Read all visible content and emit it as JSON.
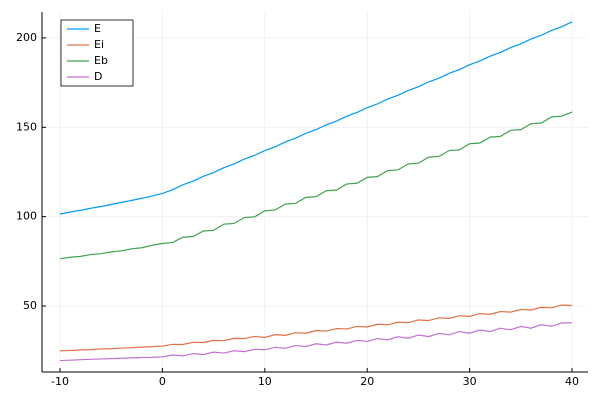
{
  "chart_data": {
    "type": "line",
    "x": [
      -10,
      -9,
      -8,
      -7,
      -6,
      -5,
      -4,
      -3,
      -2,
      -1,
      0,
      1,
      2,
      3,
      4,
      5,
      6,
      7,
      8,
      9,
      10,
      11,
      12,
      13,
      14,
      15,
      16,
      17,
      18,
      19,
      20,
      21,
      22,
      23,
      24,
      25,
      26,
      27,
      28,
      29,
      30,
      31,
      32,
      33,
      34,
      35,
      36,
      37,
      38,
      39,
      40
    ],
    "series": [
      {
        "name": "E",
        "color": "#009afa",
        "values": [
          101.5,
          102.6,
          103.6,
          104.7,
          105.7,
          106.8,
          108,
          109.1,
          110.3,
          111.6,
          113,
          115.1,
          117.8,
          119.9,
          122.6,
          124.7,
          127.4,
          129.5,
          132.2,
          134.3,
          137,
          139.1,
          141.8,
          143.9,
          146.6,
          148.7,
          151.4,
          153.5,
          156.2,
          158.3,
          161,
          163.1,
          165.8,
          167.9,
          170.6,
          172.7,
          175.4,
          177.5,
          180.2,
          182.3,
          185,
          187.1,
          189.8,
          191.9,
          194.6,
          196.7,
          199.4,
          201.5,
          204.2,
          206.3,
          209
        ]
      },
      {
        "name": "Ei",
        "color": "#e36f47",
        "values": [
          25,
          25.1,
          25.5,
          25.6,
          26,
          26.1,
          26.5,
          26.7,
          27,
          27.3,
          27.6,
          28.6,
          28.5,
          29.7,
          29.6,
          30.8,
          30.7,
          31.9,
          31.8,
          33,
          32.4,
          34,
          33.6,
          35.1,
          34.8,
          36.3,
          36,
          37.4,
          37.2,
          38.6,
          38.3,
          39.8,
          39.5,
          41,
          40.7,
          42.2,
          41.9,
          43.4,
          43.1,
          44.6,
          44.2,
          45.7,
          45.4,
          46.9,
          46.6,
          48.1,
          47.8,
          49.3,
          49,
          50.6,
          50.3
        ]
      },
      {
        "name": "Eb",
        "color": "#3ea44e",
        "values": [
          76.5,
          77.3,
          77.8,
          78.8,
          79.3,
          80.3,
          80.9,
          82,
          82.6,
          84,
          85,
          85.6,
          88.5,
          88.9,
          92,
          92.4,
          95.8,
          96.2,
          99.5,
          99.9,
          103.3,
          103.7,
          107,
          107.4,
          110.8,
          111.2,
          114.5,
          114.9,
          118.3,
          118.7,
          122,
          122.4,
          125.8,
          126.2,
          129.5,
          129.9,
          133.3,
          133.7,
          137,
          137.4,
          140.8,
          141.2,
          144.5,
          144.9,
          148.3,
          148.7,
          152,
          152.4,
          155.8,
          156.2,
          158.5
        ]
      },
      {
        "name": "D",
        "color": "#c271d2",
        "values": [
          19.5,
          19.7,
          20,
          20.2,
          20.4,
          20.6,
          20.8,
          21,
          21.2,
          21.3,
          21.6,
          22.6,
          22.1,
          23.4,
          22.9,
          24.2,
          23.7,
          25,
          24.5,
          25.8,
          25.6,
          26.9,
          26.4,
          27.9,
          27.3,
          28.9,
          28.2,
          29.8,
          29.2,
          30.8,
          30.2,
          31.8,
          31.1,
          32.8,
          32,
          33.8,
          32.9,
          34.7,
          33.9,
          35.7,
          34.8,
          36.6,
          35.7,
          37.6,
          36.7,
          38.6,
          37.6,
          39.6,
          38.6,
          40.6,
          40.6
        ]
      }
    ],
    "xlim": [
      -11.76,
      41.56
    ],
    "xticks": [
      -10,
      0,
      10,
      20,
      30,
      40
    ],
    "ylim": [
      13.1,
      214.5
    ],
    "yticks": [
      50,
      100,
      150,
      200
    ],
    "grid": true,
    "legend": "top-left"
  }
}
